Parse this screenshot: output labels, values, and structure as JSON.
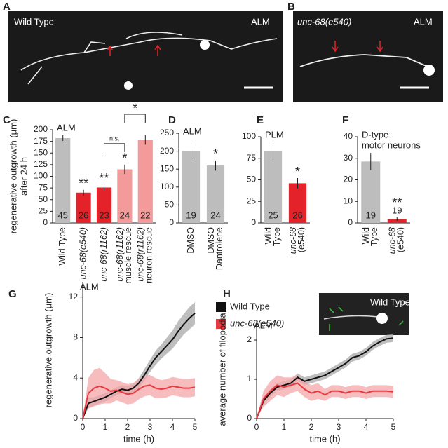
{
  "images": [
    {
      "label": "A",
      "texts": [
        "Wild Type",
        "ALM"
      ]
    },
    {
      "label": "B",
      "texts": [
        "unc-68(e540)",
        "ALM"
      ]
    }
  ],
  "chart_data": [
    {
      "type": "bar",
      "label": "C",
      "title": [
        "ALM"
      ],
      "ylabel": [
        "regenerative outgrowth (μm)",
        "after 24 h"
      ],
      "categories": [
        [
          "Wild Type"
        ],
        [
          "unc-68(e540)"
        ],
        [
          "unc-68(r1162)"
        ],
        [
          "unc-68(r1162)",
          "muscle rescue"
        ],
        [
          "unc-68(r1162)",
          "neuron rescue"
        ]
      ],
      "values": [
        182,
        65,
        76,
        115,
        178
      ],
      "errors": [
        6,
        6,
        6,
        10,
        10
      ],
      "n": [
        "45",
        "26",
        "23",
        "24",
        "22"
      ],
      "stars": [
        null,
        "**",
        "**",
        "*",
        null
      ],
      "brackets": [
        {
          "from": 2,
          "to": 3,
          "label": "n.s."
        },
        {
          "from": 3,
          "to": 4,
          "label": "*"
        }
      ],
      "colors": [
        "#bdbdbd",
        "#e4222a",
        "#e4222a",
        "#f39a9a",
        "#f39a9a"
      ],
      "ylim": [
        0,
        200
      ],
      "yticks": [
        0,
        25,
        50,
        75,
        100,
        125,
        150,
        175,
        200
      ]
    },
    {
      "type": "bar",
      "label": "D",
      "title": [
        "ALM"
      ],
      "categories": [
        [
          "DMSO"
        ],
        [
          "DMSO",
          "Dantrolene"
        ]
      ],
      "values": [
        200,
        160
      ],
      "errors": [
        18,
        14
      ],
      "n": [
        "19",
        "24"
      ],
      "stars": [
        null,
        "*"
      ],
      "colors": [
        "#bdbdbd",
        "#bdbdbd"
      ],
      "ylim": [
        0,
        250
      ],
      "yticks": [
        0,
        50,
        100,
        150,
        200,
        250
      ]
    },
    {
      "type": "bar",
      "label": "E",
      "title": [
        "PLM"
      ],
      "categories": [
        [
          "Wild",
          "Type"
        ],
        [
          "unc-68",
          "(e540)"
        ]
      ],
      "values": [
        83,
        46
      ],
      "errors": [
        10,
        6
      ],
      "n": [
        "25",
        "26"
      ],
      "stars": [
        null,
        "*"
      ],
      "colors": [
        "#bdbdbd",
        "#e4222a"
      ],
      "ylim": [
        0,
        100
      ],
      "yticks": [
        0,
        25,
        50,
        75,
        100
      ]
    },
    {
      "type": "bar",
      "label": "F",
      "title": [
        "D-type",
        "motor neurons"
      ],
      "categories": [
        [
          "Wild",
          "Type"
        ],
        [
          "unc-68",
          "(e540)"
        ]
      ],
      "values": [
        28.5,
        1.8
      ],
      "errors": [
        4,
        0.8
      ],
      "n": [
        "19",
        "19"
      ],
      "stars": [
        null,
        "**"
      ],
      "colors": [
        "#bdbdbd",
        "#e4222a"
      ],
      "ylim": [
        0,
        40
      ],
      "yticks": [
        0,
        10,
        20,
        30,
        40
      ]
    },
    {
      "type": "line",
      "label": "G",
      "title": [
        "ALM"
      ],
      "xlabel": "time (h)",
      "ylabel": [
        "regenerative outgrowth (μm)"
      ],
      "x": [
        0,
        0.25,
        0.5,
        0.75,
        1,
        1.25,
        1.5,
        1.75,
        2,
        2.25,
        2.5,
        2.75,
        3,
        3.25,
        3.5,
        3.75,
        4,
        4.25,
        4.5,
        4.75,
        5
      ],
      "series": [
        {
          "name": "Wild Type",
          "color": "#111111",
          "band_color": "#a8a8a8",
          "values": [
            0,
            1.5,
            1.7,
            1.9,
            2.1,
            2.4,
            2.7,
            2.9,
            2.8,
            3.0,
            3.5,
            4.3,
            5.2,
            6.0,
            6.6,
            7.2,
            7.8,
            8.6,
            9.3,
            9.9,
            10.4
          ],
          "errors": [
            0,
            0.5,
            0.4,
            0.4,
            0.4,
            0.4,
            0.4,
            0.4,
            0.4,
            0.4,
            0.5,
            0.6,
            0.6,
            0.7,
            0.7,
            0.8,
            0.9,
            1.0,
            1.0,
            1.1,
            1.1
          ]
        },
        {
          "name": "unc-68(e540)",
          "color": "#e8393f",
          "band_color": "#f4a6a8",
          "values": [
            0,
            2.5,
            3.0,
            3.2,
            3.0,
            2.7,
            2.8,
            2.6,
            2.4,
            2.5,
            2.9,
            3.2,
            3.3,
            3.0,
            2.9,
            3.0,
            3.2,
            3.1,
            3.0,
            3.0,
            3.1
          ],
          "errors": [
            0,
            1.5,
            1.8,
            1.8,
            1.5,
            1.2,
            1.0,
            1.0,
            1.0,
            1.0,
            1.0,
            1.0,
            1.0,
            1.0,
            0.9,
            0.9,
            0.9,
            0.9,
            0.9,
            0.9,
            0.9
          ]
        }
      ],
      "legend": true,
      "xlim": [
        0,
        5
      ],
      "xticks": [
        0,
        1,
        2,
        3,
        4,
        5
      ],
      "ylim": [
        0,
        13.5
      ],
      "yticks": [
        0,
        4,
        8,
        12
      ]
    },
    {
      "type": "line",
      "label": "H",
      "title": [
        "ALM"
      ],
      "xlabel": "time (h)",
      "ylabel": [
        "average number of filopodia"
      ],
      "inset_text": "Wild Type",
      "x": [
        0,
        0.25,
        0.5,
        0.75,
        1,
        1.25,
        1.5,
        1.75,
        2,
        2.25,
        2.5,
        2.75,
        3,
        3.25,
        3.5,
        3.75,
        4,
        4.25,
        4.5,
        4.75,
        5
      ],
      "series": [
        {
          "name": "Wild Type",
          "color": "#111111",
          "band_color": "#a8a8a8",
          "values": [
            0,
            0.45,
            0.65,
            0.8,
            0.85,
            0.9,
            1.05,
            0.95,
            1.0,
            1.05,
            1.1,
            1.2,
            1.3,
            1.4,
            1.55,
            1.6,
            1.7,
            1.85,
            1.95,
            2.03,
            2.05
          ],
          "errors": [
            0,
            0.1,
            0.1,
            0.1,
            0.1,
            0.1,
            0.1,
            0.1,
            0.1,
            0.1,
            0.1,
            0.1,
            0.1,
            0.1,
            0.1,
            0.1,
            0.1,
            0.1,
            0.1,
            0.1,
            0.1
          ]
        },
        {
          "name": "unc-68(e540)",
          "color": "#e8393f",
          "band_color": "#f4a6a8",
          "values": [
            0,
            0.5,
            0.7,
            0.85,
            0.8,
            0.85,
            0.9,
            0.75,
            0.65,
            0.7,
            0.6,
            0.7,
            0.7,
            0.65,
            0.7,
            0.7,
            0.65,
            0.7,
            0.7,
            0.7,
            0.68
          ],
          "errors": [
            0,
            0.2,
            0.25,
            0.25,
            0.25,
            0.2,
            0.2,
            0.2,
            0.2,
            0.2,
            0.15,
            0.15,
            0.15,
            0.15,
            0.15,
            0.15,
            0.15,
            0.15,
            0.15,
            0.15,
            0.15
          ]
        }
      ],
      "legend": false,
      "xlim": [
        0,
        5
      ],
      "xticks": [
        0,
        1,
        2,
        3,
        4,
        5
      ],
      "ylim": [
        0,
        2.5
      ],
      "yticks": [
        0,
        1,
        2
      ]
    }
  ]
}
